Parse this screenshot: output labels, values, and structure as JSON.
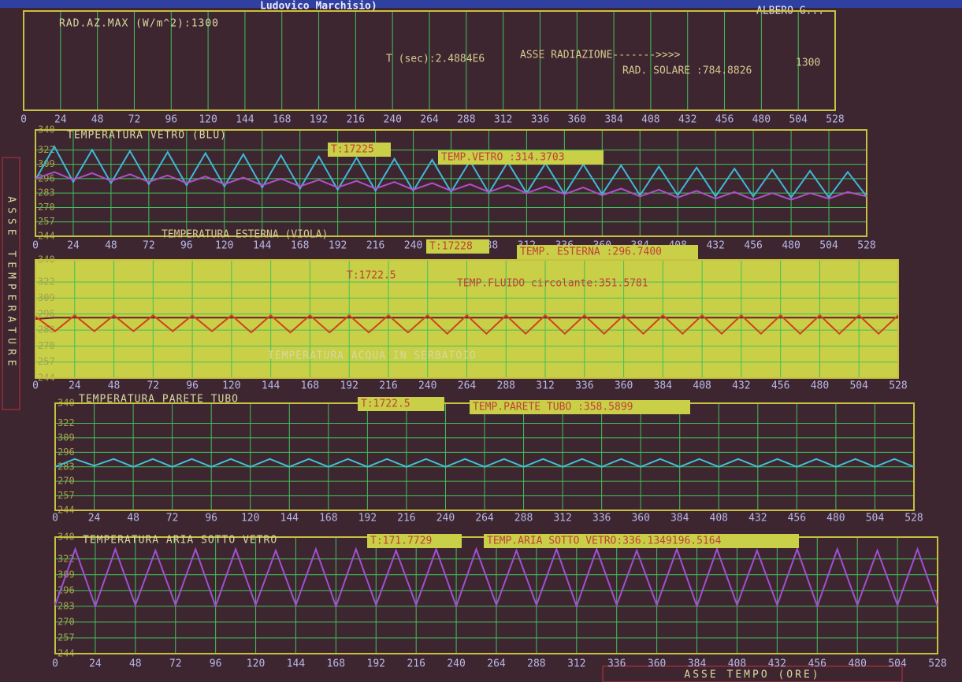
{
  "header": {
    "author": "Ludovico Marchisio)",
    "right_text": "ALBERO G..."
  },
  "side_label": "ASSE TEMPERATURE",
  "x_axis_label": "ASSE TEMPO (ORE)",
  "chart_data": [
    {
      "type": "line",
      "title": "RAD.AZ.MAX (W/m^2):1300",
      "annotations": [
        "T (sec):2.4884E6",
        "ASSE RADIAZIONE------->>>>",
        "RAD. SOLARE :784.8826",
        "1300"
      ],
      "xlim": [
        0,
        528
      ],
      "xticks": [
        0,
        24,
        48,
        72,
        96,
        120,
        144,
        168,
        192,
        216,
        240,
        264,
        288,
        312,
        336,
        360,
        384,
        408,
        432,
        456,
        480,
        504,
        528
      ],
      "series": []
    },
    {
      "type": "line",
      "title": "TEMPERATURA VETRO (BLU)",
      "annotations": [
        "T:17225",
        "TEMP.VETRO :314.3703",
        "TEMPERATURA ESTERNA (VIOLA)",
        "T:17228",
        "TEMP. ESTERNA :296.7400"
      ],
      "xlim": [
        0,
        528
      ],
      "xticks": [
        0,
        24,
        48,
        72,
        96,
        120,
        144,
        168,
        192,
        216,
        240,
        264,
        288,
        312,
        336,
        360,
        384,
        408,
        432,
        456,
        480,
        504,
        528
      ],
      "ylim": [
        244,
        340
      ],
      "yticks": [
        244,
        257,
        270,
        283,
        296,
        309,
        322,
        340
      ],
      "x": [
        0,
        12,
        24,
        36,
        48,
        60,
        72,
        84,
        96,
        108,
        120,
        132,
        144,
        156,
        168,
        180,
        192,
        204,
        216,
        228,
        240,
        252,
        264,
        276,
        288,
        300,
        312,
        324,
        336,
        348,
        360,
        372,
        384,
        396,
        408,
        420,
        432,
        444,
        456,
        468,
        480,
        492,
        504,
        516,
        528
      ],
      "series": [
        {
          "name": "VETRO",
          "color": "#3fb8d8",
          "values": [
            295,
            325,
            293,
            322,
            292,
            321,
            291,
            320,
            290,
            319,
            289,
            318,
            288,
            317,
            287,
            316,
            286,
            315,
            285,
            314,
            285,
            313,
            284,
            312,
            283,
            311,
            283,
            310,
            282,
            309,
            282,
            308,
            281,
            307,
            281,
            306,
            280,
            305,
            280,
            304,
            279,
            303,
            279,
            302,
            280
          ]
        },
        {
          "name": "ESTERNA",
          "color": "#b050c8",
          "values": [
            296,
            302,
            295,
            301,
            294,
            300,
            293,
            299,
            292,
            298,
            291,
            297,
            290,
            296,
            289,
            295,
            288,
            294,
            287,
            293,
            286,
            292,
            285,
            291,
            284,
            290,
            283,
            289,
            282,
            288,
            281,
            287,
            280,
            286,
            279,
            285,
            278,
            284,
            277,
            283,
            277,
            283,
            278,
            284,
            280
          ]
        }
      ]
    },
    {
      "type": "line",
      "title": "TEMPERATURA ACQUA IN SERBATOIO",
      "annotations": [
        "T:1722.5",
        "TEMP.FLUIDO circolante:351.5781"
      ],
      "xlim": [
        0,
        528
      ],
      "xticks": [
        0,
        24,
        48,
        72,
        96,
        120,
        144,
        168,
        192,
        216,
        240,
        264,
        288,
        312,
        336,
        360,
        384,
        408,
        432,
        456,
        480,
        504,
        528
      ],
      "ylim": [
        244,
        340
      ],
      "yticks": [
        244,
        257,
        270,
        283,
        296,
        309,
        322,
        340
      ],
      "x": [
        0,
        12,
        24,
        36,
        48,
        60,
        72,
        84,
        96,
        108,
        120,
        132,
        144,
        156,
        168,
        180,
        192,
        204,
        216,
        228,
        240,
        252,
        264,
        276,
        288,
        300,
        312,
        324,
        336,
        348,
        360,
        372,
        384,
        396,
        408,
        420,
        432,
        444,
        456,
        468,
        480,
        492,
        504,
        516,
        528
      ],
      "series": [
        {
          "name": "SERBATOIO",
          "color": "#6a2030",
          "values": [
            292,
            293,
            293,
            293,
            293,
            293,
            293,
            293,
            293,
            293,
            293,
            293,
            293,
            293,
            293,
            293,
            293,
            293,
            293,
            293,
            293,
            293,
            293,
            293,
            293,
            293,
            293,
            293,
            293,
            293,
            293,
            293,
            293,
            293,
            293,
            293,
            293,
            293,
            293,
            293,
            293,
            293,
            293,
            293,
            293
          ]
        },
        {
          "name": "FLUIDO",
          "color": "#d04020",
          "values": [
            294,
            282,
            295,
            282,
            295,
            282,
            295,
            282,
            295,
            282,
            295,
            281,
            295,
            281,
            295,
            281,
            295,
            281,
            295,
            281,
            295,
            280,
            295,
            280,
            295,
            280,
            295,
            280,
            295,
            280,
            295,
            280,
            295,
            280,
            295,
            280,
            295,
            280,
            295,
            280,
            295,
            280,
            295,
            280,
            295
          ]
        }
      ]
    },
    {
      "type": "line",
      "title": "TEMPERATURA PARETE TUBO",
      "annotations": [
        "T:1722.5",
        "TEMP.PARETE TUBO :358.5899"
      ],
      "xlim": [
        0,
        528
      ],
      "xticks": [
        0,
        24,
        48,
        72,
        96,
        120,
        144,
        168,
        192,
        216,
        240,
        264,
        288,
        312,
        336,
        360,
        384,
        408,
        432,
        456,
        480,
        504,
        528
      ],
      "ylim": [
        244,
        340
      ],
      "yticks": [
        244,
        257,
        270,
        283,
        296,
        309,
        322,
        340
      ],
      "x": [
        0,
        12,
        24,
        36,
        48,
        60,
        72,
        84,
        96,
        108,
        120,
        132,
        144,
        156,
        168,
        180,
        192,
        204,
        216,
        228,
        240,
        252,
        264,
        276,
        288,
        300,
        312,
        324,
        336,
        348,
        360,
        372,
        384,
        396,
        408,
        420,
        432,
        444,
        456,
        468,
        480,
        492,
        504,
        516,
        528
      ],
      "series": [
        {
          "name": "PARETE",
          "color": "#40c0d8",
          "values": [
            283,
            290,
            284,
            290,
            283,
            290,
            283,
            290,
            283,
            290,
            283,
            290,
            283,
            290,
            283,
            290,
            283,
            290,
            283,
            290,
            283,
            290,
            283,
            290,
            283,
            290,
            283,
            290,
            283,
            290,
            283,
            290,
            283,
            290,
            283,
            290,
            283,
            290,
            283,
            290,
            283,
            290,
            283,
            290,
            283
          ]
        }
      ]
    },
    {
      "type": "line",
      "title": "TEMPERATURA ARIA SOTTO VETRO",
      "annotations": [
        "T:171.7729",
        "TEMP.ARIA SOTTO VETRO:336.1349196.5164"
      ],
      "xlim": [
        0,
        528
      ],
      "xticks": [
        0,
        24,
        48,
        72,
        96,
        120,
        144,
        168,
        192,
        216,
        240,
        264,
        288,
        312,
        336,
        360,
        384,
        408,
        432,
        456,
        480,
        504,
        528
      ],
      "ylim": [
        244,
        340
      ],
      "yticks": [
        244,
        257,
        270,
        283,
        296,
        309,
        322,
        340
      ],
      "x": [
        0,
        12,
        24,
        36,
        48,
        60,
        72,
        84,
        96,
        108,
        120,
        132,
        144,
        156,
        168,
        180,
        192,
        204,
        216,
        228,
        240,
        252,
        264,
        276,
        288,
        300,
        312,
        324,
        336,
        348,
        360,
        372,
        384,
        396,
        408,
        420,
        432,
        444,
        456,
        468,
        480,
        492,
        504,
        516,
        528
      ],
      "series": [
        {
          "name": "ARIA",
          "color": "#a050d0",
          "values": [
            284,
            330,
            283,
            330,
            284,
            329,
            284,
            330,
            283,
            330,
            284,
            329,
            284,
            330,
            283,
            330,
            284,
            329,
            284,
            330,
            283,
            330,
            284,
            329,
            284,
            330,
            283,
            330,
            284,
            329,
            284,
            330,
            283,
            330,
            284,
            329,
            284,
            330,
            283,
            330,
            284,
            329,
            284,
            330,
            283
          ]
        }
      ]
    }
  ]
}
